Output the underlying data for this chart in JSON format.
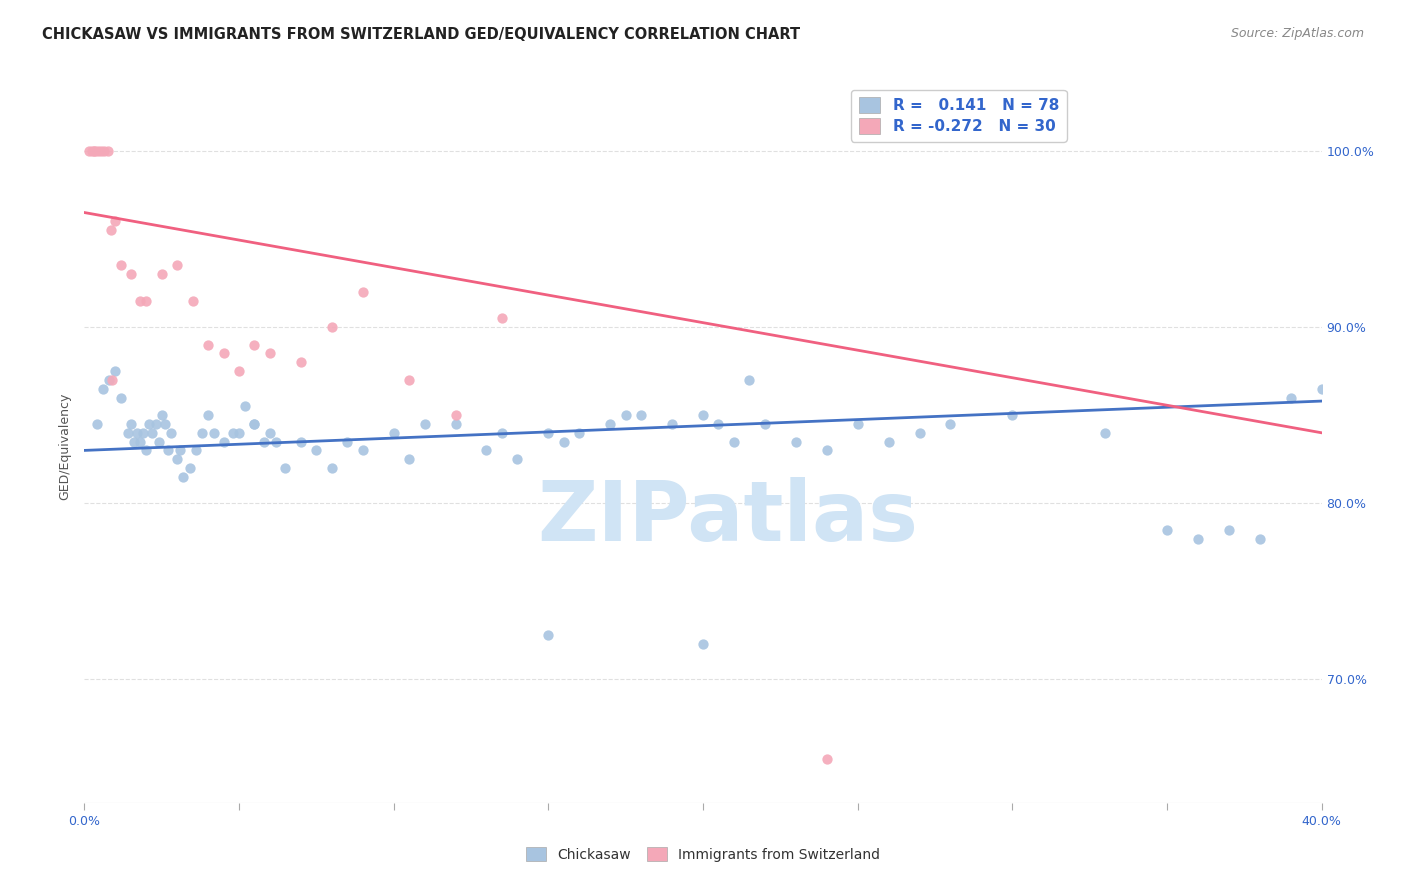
{
  "title": "CHICKASAW VS IMMIGRANTS FROM SWITZERLAND GED/EQUIVALENCY CORRELATION CHART",
  "source": "Source: ZipAtlas.com",
  "ylabel": "GED/Equivalency",
  "watermark": "ZIPatlas",
  "legend_blue_r_val": "0.141",
  "legend_blue_n_val": "78",
  "legend_pink_r_val": "-0.272",
  "legend_pink_n_val": "30",
  "legend_label_blue": "Chickasaw",
  "legend_label_pink": "Immigrants from Switzerland",
  "blue_color": "#a8c4e0",
  "pink_color": "#f4a8b8",
  "blue_line_color": "#4472c4",
  "pink_line_color": "#f06080",
  "accent_color": "#3366cc",
  "x_min": 0.0,
  "x_max": 40.0,
  "y_min": 63.0,
  "y_max": 103.5,
  "blue_scatter_x": [
    0.4,
    0.6,
    0.8,
    1.0,
    1.2,
    1.4,
    1.5,
    1.6,
    1.7,
    1.8,
    1.9,
    2.0,
    2.1,
    2.2,
    2.3,
    2.4,
    2.5,
    2.6,
    2.7,
    2.8,
    3.0,
    3.1,
    3.2,
    3.4,
    3.6,
    3.8,
    4.0,
    4.2,
    4.5,
    4.8,
    5.0,
    5.2,
    5.5,
    5.8,
    6.0,
    6.5,
    7.0,
    7.5,
    8.0,
    8.5,
    9.0,
    10.0,
    11.0,
    12.0,
    13.0,
    14.0,
    15.0,
    16.0,
    17.0,
    18.0,
    19.0,
    20.0,
    21.0,
    22.0,
    23.0,
    24.0,
    25.0,
    26.0,
    27.0,
    28.0,
    30.0,
    33.0,
    35.0,
    36.0,
    37.0,
    38.0,
    39.0,
    40.0,
    5.5,
    6.2,
    10.5,
    13.5,
    15.5,
    17.5,
    20.5,
    21.5,
    15.0,
    20.0
  ],
  "blue_scatter_y": [
    84.5,
    86.5,
    87.0,
    87.5,
    86.0,
    84.0,
    84.5,
    83.5,
    84.0,
    83.5,
    84.0,
    83.0,
    84.5,
    84.0,
    84.5,
    83.5,
    85.0,
    84.5,
    83.0,
    84.0,
    82.5,
    83.0,
    81.5,
    82.0,
    83.0,
    84.0,
    85.0,
    84.0,
    83.5,
    84.0,
    84.0,
    85.5,
    84.5,
    83.5,
    84.0,
    82.0,
    83.5,
    83.0,
    82.0,
    83.5,
    83.0,
    84.0,
    84.5,
    84.5,
    83.0,
    82.5,
    84.0,
    84.0,
    84.5,
    85.0,
    84.5,
    85.0,
    83.5,
    84.5,
    83.5,
    83.0,
    84.5,
    83.5,
    84.0,
    84.5,
    85.0,
    84.0,
    78.5,
    78.0,
    78.5,
    78.0,
    86.0,
    86.5,
    84.5,
    83.5,
    82.5,
    84.0,
    83.5,
    85.0,
    84.5,
    87.0,
    72.5,
    72.0
  ],
  "pink_scatter_x": [
    0.15,
    0.25,
    0.35,
    0.45,
    0.55,
    0.65,
    0.75,
    0.85,
    1.0,
    1.2,
    1.5,
    1.8,
    2.0,
    2.5,
    3.0,
    3.5,
    4.0,
    4.5,
    5.0,
    5.5,
    6.0,
    7.0,
    8.0,
    9.0,
    10.5,
    12.0,
    13.5,
    24.0,
    0.3,
    0.9
  ],
  "pink_scatter_y": [
    100.0,
    100.0,
    100.0,
    100.0,
    100.0,
    100.0,
    100.0,
    95.5,
    96.0,
    93.5,
    93.0,
    91.5,
    91.5,
    93.0,
    93.5,
    91.5,
    89.0,
    88.5,
    87.5,
    89.0,
    88.5,
    88.0,
    90.0,
    92.0,
    87.0,
    85.0,
    90.5,
    65.5,
    100.0,
    87.0
  ],
  "blue_trend_x": [
    0.0,
    40.0
  ],
  "blue_trend_y": [
    83.0,
    85.8
  ],
  "pink_trend_x": [
    0.0,
    40.0
  ],
  "pink_trend_y": [
    96.5,
    84.0
  ],
  "grid_color": "#e0e0e0",
  "background_color": "#ffffff",
  "title_fontsize": 10.5,
  "axis_label_fontsize": 9,
  "tick_fontsize": 9,
  "watermark_fontsize": 60,
  "watermark_color": "#d0e4f5",
  "source_fontsize": 9
}
